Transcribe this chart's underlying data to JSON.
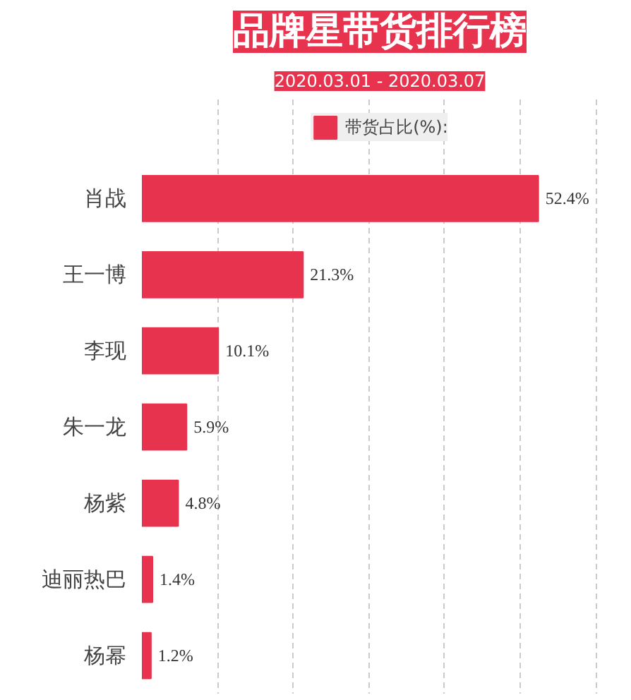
{
  "chart_data": {
    "type": "bar",
    "orientation": "horizontal",
    "title": "品牌星带货排行榜",
    "subtitle": "2020.03.01 - 2020.03.07",
    "categories": [
      "肖战",
      "王一博",
      "李现",
      "朱一龙",
      "杨紫",
      "迪丽热巴",
      "杨幂"
    ],
    "series": [
      {
        "name": "带货占比(%):",
        "color": "#e8334f",
        "values": [
          52.4,
          21.3,
          10.1,
          5.9,
          4.8,
          1.4,
          1.2
        ],
        "value_labels": [
          "52.4%",
          "21.3%",
          "10.1%",
          "5.9%",
          "4.8%",
          "1.4%",
          "1.2%"
        ]
      }
    ],
    "grid": "x",
    "legend": "top",
    "tick_labels": "y"
  }
}
